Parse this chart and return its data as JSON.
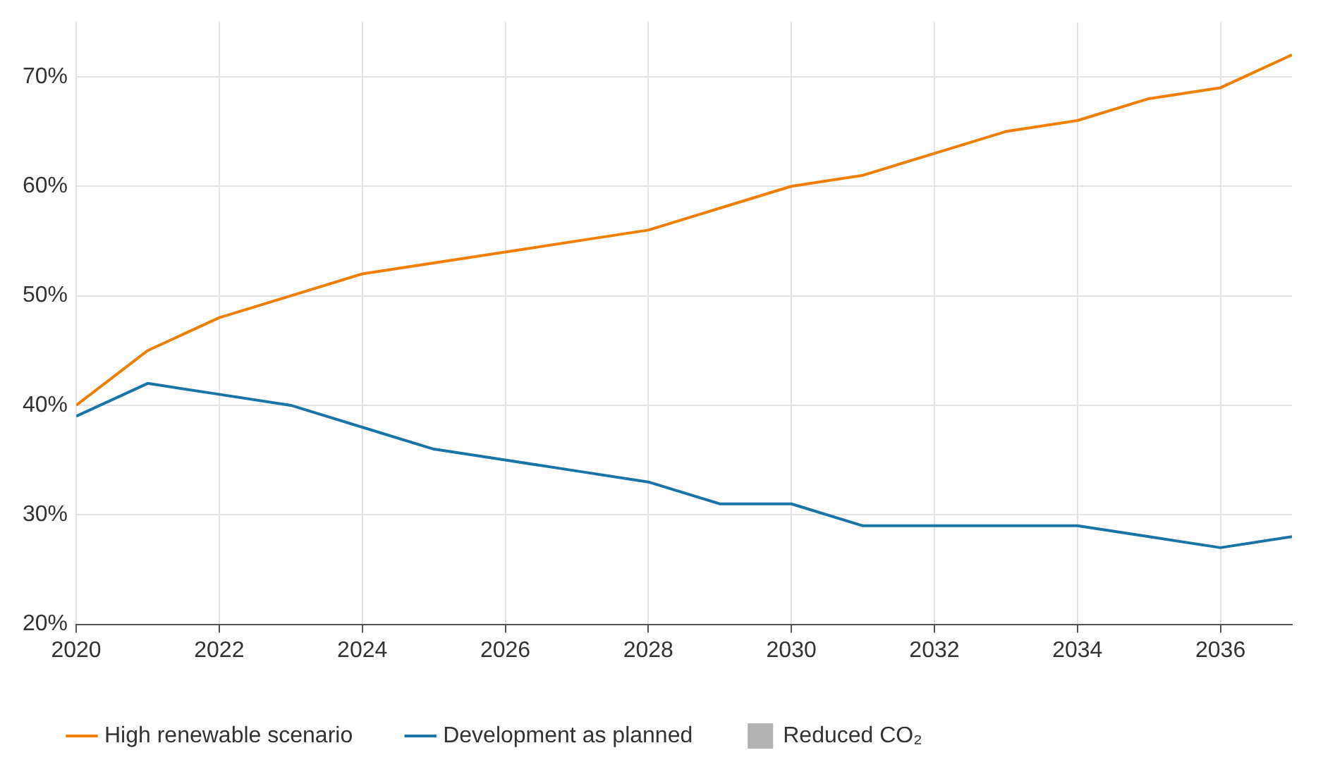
{
  "chart_data": {
    "type": "line",
    "x": [
      2020,
      2021,
      2022,
      2023,
      2024,
      2025,
      2026,
      2027,
      2028,
      2029,
      2030,
      2031,
      2032,
      2033,
      2034,
      2035,
      2036,
      2037
    ],
    "series": [
      {
        "name": "High renewable scenario",
        "color": "#ee7f00",
        "values": [
          40,
          45,
          48,
          50,
          52,
          53,
          54,
          55,
          56,
          58,
          60,
          61,
          63,
          65,
          66,
          68,
          69,
          72
        ]
      },
      {
        "name": "Development as planned",
        "color": "#1a75a6",
        "values": [
          39,
          42,
          41,
          40,
          38,
          36,
          35,
          34,
          33,
          31,
          31,
          29,
          29,
          29,
          29,
          28,
          27,
          28
        ]
      },
      {
        "name": "Reduced CO₂",
        "type": "area",
        "color": "#b2b2b2",
        "values": [
          null,
          null,
          null,
          null,
          null,
          null,
          null,
          null,
          null,
          null,
          null,
          null,
          null,
          null,
          null,
          null,
          null,
          null
        ]
      }
    ],
    "xlim": [
      2020,
      2037
    ],
    "xticks": [
      2020,
      2022,
      2024,
      2026,
      2028,
      2030,
      2032,
      2034,
      2036
    ],
    "ylim": [
      20,
      75
    ],
    "yticks": [
      {
        "value": 20,
        "label": "20%"
      },
      {
        "value": 30,
        "label": "30%"
      },
      {
        "value": 40,
        "label": "40%"
      },
      {
        "value": 50,
        "label": "50%"
      },
      {
        "value": 60,
        "label": "60%"
      },
      {
        "value": 70,
        "label": "70%"
      }
    ],
    "grid": true,
    "legend": "bottom",
    "marker": "none",
    "line_style": "solid"
  }
}
